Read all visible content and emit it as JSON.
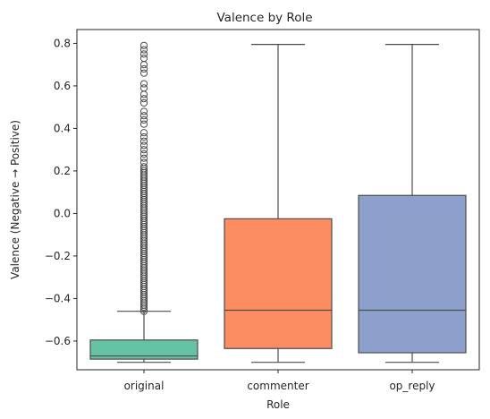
{
  "chart_data": {
    "type": "box",
    "title": "Valence by Role",
    "xlabel": "Role",
    "ylabel": "Valence (Negative → Positive)",
    "ylim": [
      -0.735,
      0.865
    ],
    "yticks": [
      -0.6,
      -0.4,
      -0.2,
      0.0,
      0.2,
      0.4,
      0.6,
      0.8
    ],
    "ytick_labels": [
      "−0.6",
      "−0.4",
      "−0.2",
      "0.0",
      "0.2",
      "0.4",
      "0.6",
      "0.8"
    ],
    "grid": false,
    "categories": [
      "original",
      "commenter",
      "op_reply"
    ],
    "boxes": [
      {
        "category": "original",
        "color": "#66c2a5",
        "whisker_low": -0.7,
        "q1": -0.685,
        "median": -0.67,
        "q3": -0.595,
        "whisker_high": -0.46,
        "outliers_dense_range": [
          -0.46,
          0.22
        ],
        "outliers": [
          0.24,
          0.26,
          0.28,
          0.3,
          0.32,
          0.34,
          0.36,
          0.38,
          0.42,
          0.44,
          0.46,
          0.48,
          0.52,
          0.54,
          0.56,
          0.59,
          0.61,
          0.66,
          0.68,
          0.7,
          0.73,
          0.75,
          0.77,
          0.79
        ]
      },
      {
        "category": "commenter",
        "color": "#fc8d62",
        "whisker_low": -0.7,
        "q1": -0.635,
        "median": -0.455,
        "q3": -0.025,
        "whisker_high": 0.795,
        "outliers": []
      },
      {
        "category": "op_reply",
        "color": "#8da0cb",
        "whisker_low": -0.7,
        "q1": -0.655,
        "median": -0.455,
        "q3": 0.085,
        "whisker_high": 0.795,
        "outliers": []
      }
    ]
  }
}
